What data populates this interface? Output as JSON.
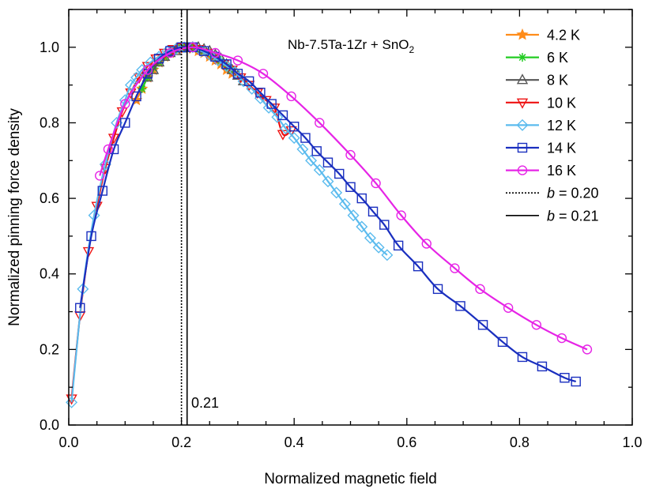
{
  "chart_data": {
    "type": "line",
    "title": "",
    "annotation": {
      "label": "Nb-7.5Ta-1Zr + SnO",
      "subscript": "2"
    },
    "xlabel": "Normalized magnetic field",
    "ylabel": "Normalized pinning force density",
    "xlim": [
      0.0,
      1.0
    ],
    "ylim": [
      0.0,
      1.1
    ],
    "xticks": [
      0.0,
      0.2,
      0.4,
      0.6,
      0.8,
      1.0
    ],
    "xtick_labels": [
      "0.0",
      "0.2",
      "0.4",
      "0.6",
      "0.8",
      "1.0"
    ],
    "yticks": [
      0.0,
      0.2,
      0.4,
      0.6,
      0.8,
      1.0
    ],
    "ytick_labels": [
      "0.0",
      "0.2",
      "0.4",
      "0.6",
      "0.8",
      "1.0"
    ],
    "grid": false,
    "legend_position": "top-right",
    "vline_label": "0.21",
    "series": [
      {
        "name": "4.2 K",
        "color": "#ff8c1a",
        "marker": "star",
        "x": [
          0.12,
          0.13,
          0.14,
          0.15,
          0.16,
          0.17,
          0.18,
          0.19,
          0.2,
          0.21,
          0.22,
          0.23,
          0.24,
          0.25,
          0.26,
          0.27,
          0.28,
          0.29
        ],
        "y": [
          0.86,
          0.89,
          0.92,
          0.94,
          0.96,
          0.975,
          0.985,
          0.995,
          1.0,
          1.0,
          0.997,
          0.99,
          0.985,
          0.975,
          0.965,
          0.955,
          0.94,
          0.93
        ]
      },
      {
        "name": "6 K",
        "color": "#22cc22",
        "marker": "asterisk",
        "x": [
          0.13,
          0.14,
          0.15,
          0.16,
          0.17,
          0.18,
          0.19,
          0.2,
          0.21,
          0.22,
          0.23,
          0.24,
          0.25,
          0.26,
          0.27,
          0.28,
          0.29
        ],
        "y": [
          0.89,
          0.92,
          0.945,
          0.96,
          0.975,
          0.985,
          0.995,
          1.0,
          1.0,
          1.0,
          0.995,
          0.99,
          0.985,
          0.975,
          0.965,
          0.95,
          0.94
        ]
      },
      {
        "name": "8 K",
        "color": "#555555",
        "marker": "triangle-up",
        "x": [
          0.14,
          0.15,
          0.16,
          0.17,
          0.18,
          0.19,
          0.2,
          0.21,
          0.22,
          0.23,
          0.24,
          0.25,
          0.26,
          0.27,
          0.28,
          0.29,
          0.3,
          0.31
        ],
        "y": [
          0.92,
          0.94,
          0.96,
          0.975,
          0.985,
          0.99,
          0.997,
          1.0,
          1.0,
          1.0,
          0.995,
          0.99,
          0.98,
          0.97,
          0.955,
          0.94,
          0.925,
          0.91
        ]
      },
      {
        "name": "10 K",
        "color": "#ee1111",
        "marker": "triangle-down",
        "x": [
          0.005,
          0.02,
          0.035,
          0.05,
          0.065,
          0.08,
          0.095,
          0.11,
          0.125,
          0.14,
          0.155,
          0.17,
          0.185,
          0.2,
          0.215,
          0.23,
          0.245,
          0.26,
          0.275,
          0.29,
          0.305,
          0.32,
          0.335,
          0.35,
          0.365,
          0.38,
          0.395
        ],
        "y": [
          0.07,
          0.29,
          0.46,
          0.58,
          0.68,
          0.76,
          0.83,
          0.88,
          0.92,
          0.95,
          0.97,
          0.985,
          0.995,
          1.0,
          1.0,
          0.995,
          0.985,
          0.97,
          0.955,
          0.94,
          0.92,
          0.9,
          0.88,
          0.86,
          0.84,
          0.77,
          0.78
        ]
      },
      {
        "name": "12 K",
        "color": "#5bbbee",
        "marker": "diamond",
        "x": [
          0.005,
          0.025,
          0.045,
          0.065,
          0.085,
          0.1,
          0.11,
          0.12,
          0.13,
          0.145,
          0.16,
          0.175,
          0.19,
          0.205,
          0.22,
          0.235,
          0.25,
          0.265,
          0.28,
          0.295,
          0.31,
          0.325,
          0.34,
          0.355,
          0.37,
          0.385,
          0.4,
          0.415,
          0.43,
          0.445,
          0.46,
          0.475,
          0.49,
          0.505,
          0.52,
          0.535,
          0.55,
          0.565
        ],
        "y": [
          0.06,
          0.36,
          0.555,
          0.69,
          0.8,
          0.86,
          0.9,
          0.92,
          0.94,
          0.96,
          0.975,
          0.99,
          0.995,
          1.0,
          1.0,
          0.99,
          0.98,
          0.965,
          0.95,
          0.935,
          0.91,
          0.89,
          0.865,
          0.84,
          0.815,
          0.785,
          0.76,
          0.73,
          0.7,
          0.675,
          0.645,
          0.615,
          0.585,
          0.555,
          0.525,
          0.495,
          0.47,
          0.45
        ]
      },
      {
        "name": "14 K",
        "color": "#1a2fbf",
        "marker": "square",
        "x": [
          0.02,
          0.04,
          0.06,
          0.08,
          0.1,
          0.12,
          0.14,
          0.16,
          0.18,
          0.2,
          0.22,
          0.24,
          0.26,
          0.28,
          0.3,
          0.32,
          0.34,
          0.36,
          0.38,
          0.4,
          0.42,
          0.44,
          0.46,
          0.48,
          0.5,
          0.52,
          0.54,
          0.56,
          0.585,
          0.62,
          0.655,
          0.695,
          0.735,
          0.77,
          0.805,
          0.84,
          0.88,
          0.9
        ],
        "y": [
          0.31,
          0.5,
          0.62,
          0.73,
          0.8,
          0.87,
          0.93,
          0.97,
          0.99,
          1.0,
          1.0,
          0.99,
          0.975,
          0.955,
          0.93,
          0.91,
          0.88,
          0.85,
          0.82,
          0.79,
          0.76,
          0.725,
          0.695,
          0.665,
          0.63,
          0.6,
          0.565,
          0.53,
          0.475,
          0.42,
          0.36,
          0.315,
          0.265,
          0.22,
          0.18,
          0.155,
          0.125,
          0.115
        ]
      },
      {
        "name": "16 K",
        "color": "#e624e6",
        "marker": "circle",
        "x": [
          0.055,
          0.07,
          0.1,
          0.14,
          0.18,
          0.22,
          0.26,
          0.3,
          0.345,
          0.395,
          0.445,
          0.5,
          0.545,
          0.59,
          0.635,
          0.685,
          0.73,
          0.78,
          0.83,
          0.875,
          0.92
        ],
        "y": [
          0.66,
          0.73,
          0.85,
          0.94,
          0.985,
          1.0,
          0.985,
          0.965,
          0.93,
          0.87,
          0.8,
          0.715,
          0.64,
          0.555,
          0.48,
          0.415,
          0.36,
          0.31,
          0.265,
          0.23,
          0.2
        ]
      },
      {
        "name": "b = 0.20",
        "color": "#000000",
        "marker": "none",
        "line": "dotted",
        "vline_x": 0.2,
        "label_prefix": "b",
        "label_suffix": " = 0.20"
      },
      {
        "name": "b = 0.21",
        "color": "#000000",
        "marker": "none",
        "line": "solid",
        "vline_x": 0.21,
        "label_prefix": "b",
        "label_suffix": " = 0.21"
      }
    ]
  }
}
